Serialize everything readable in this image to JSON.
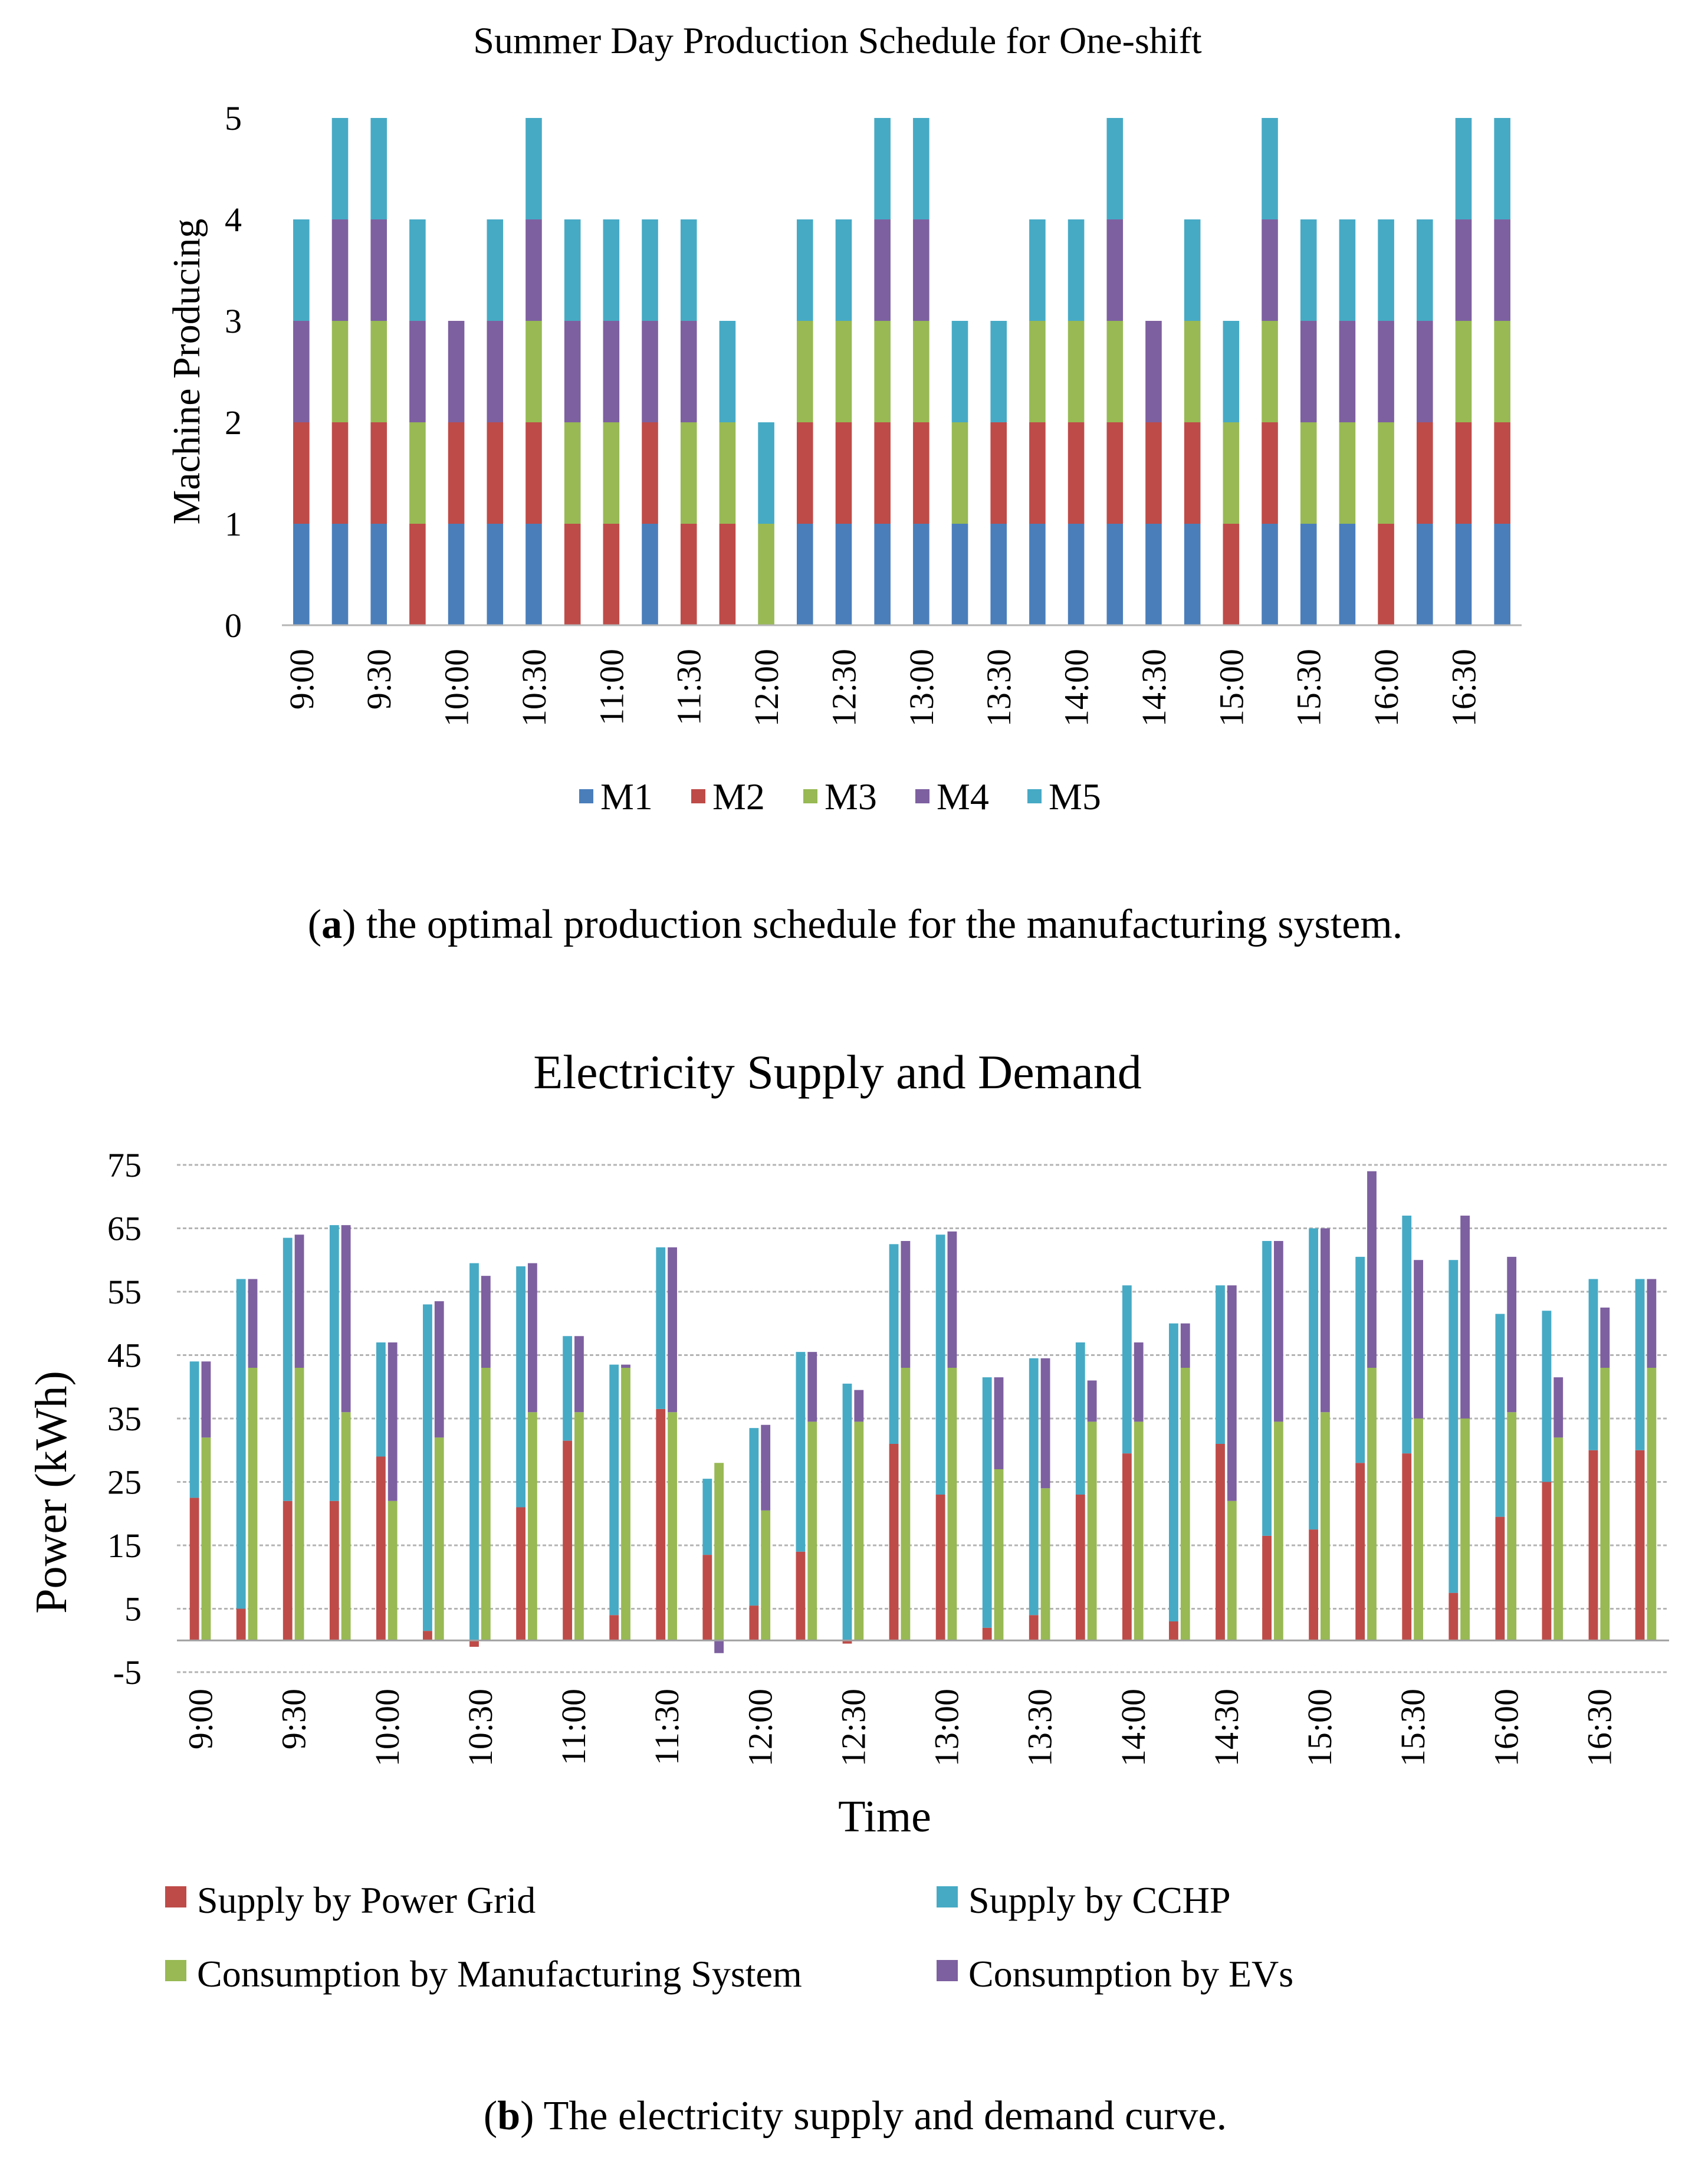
{
  "chart_data": [
    {
      "type": "bar",
      "stacked": true,
      "title": "Summer Day Production Schedule for One-shift",
      "ylabel": "Machine Producing",
      "xlabel": "",
      "ylim": [
        0,
        5
      ],
      "yticks": [
        0,
        1,
        2,
        3,
        4,
        5
      ],
      "grid": false,
      "legend_position": "bottom",
      "tick_labels": [
        "9:00",
        "9:30",
        "10:00",
        "10:30",
        "11:00",
        "11:30",
        "12:00",
        "12:30",
        "13:00",
        "13:30",
        "14:00",
        "14:30",
        "15:00",
        "15:30",
        "16:00",
        "16:30"
      ],
      "categories": [
        "9:00",
        "9:15",
        "9:30",
        "9:45",
        "10:00",
        "10:15",
        "10:30",
        "10:45",
        "11:00",
        "11:15",
        "11:30",
        "11:45",
        "12:00",
        "12:15",
        "12:30",
        "12:45",
        "13:00",
        "13:15",
        "13:30",
        "13:45",
        "14:00",
        "14:15",
        "14:30",
        "14:45",
        "15:00",
        "15:15",
        "15:30",
        "15:45",
        "16:00",
        "16:15",
        "16:30",
        "16:45"
      ],
      "series": [
        {
          "name": "M1",
          "color": "#4a7ebb",
          "values": [
            1,
            1,
            1,
            0,
            1,
            1,
            1,
            0,
            0,
            1,
            0,
            0,
            0,
            1,
            1,
            1,
            1,
            1,
            1,
            1,
            1,
            1,
            1,
            1,
            0,
            1,
            1,
            1,
            0,
            1,
            1,
            1
          ]
        },
        {
          "name": "M2",
          "color": "#be4b48",
          "values": [
            1,
            1,
            1,
            1,
            1,
            1,
            1,
            1,
            1,
            1,
            1,
            1,
            0,
            1,
            1,
            1,
            1,
            0,
            1,
            1,
            1,
            1,
            1,
            1,
            1,
            1,
            0,
            0,
            1,
            1,
            1,
            1
          ]
        },
        {
          "name": "M3",
          "color": "#98b954",
          "values": [
            0,
            1,
            1,
            1,
            0,
            0,
            1,
            1,
            1,
            0,
            1,
            1,
            1,
            1,
            1,
            1,
            1,
            1,
            0,
            1,
            1,
            1,
            0,
            1,
            1,
            1,
            1,
            1,
            1,
            0,
            1,
            1
          ]
        },
        {
          "name": "M4",
          "color": "#7d60a0",
          "values": [
            1,
            1,
            1,
            1,
            1,
            1,
            1,
            1,
            1,
            1,
            1,
            0,
            0,
            0,
            0,
            1,
            1,
            0,
            0,
            0,
            0,
            1,
            1,
            0,
            0,
            1,
            1,
            1,
            1,
            1,
            1,
            1
          ]
        },
        {
          "name": "M5",
          "color": "#46aac5",
          "values": [
            1,
            1,
            1,
            1,
            0,
            1,
            1,
            1,
            1,
            1,
            1,
            1,
            1,
            1,
            1,
            1,
            1,
            1,
            1,
            1,
            1,
            1,
            0,
            1,
            1,
            1,
            1,
            1,
            1,
            1,
            1,
            1
          ]
        }
      ]
    },
    {
      "type": "bar",
      "stacked": true,
      "title": "Electricity Supply and Demand",
      "xlabel": "Time",
      "ylabel": "Power  (kWh)",
      "ylim": [
        -5,
        75
      ],
      "yticks": [
        -5,
        5,
        15,
        25,
        35,
        45,
        55,
        65,
        75
      ],
      "grid": true,
      "legend_position": "bottom",
      "tick_labels": [
        "9:00",
        "9:30",
        "10:00",
        "10:30",
        "11:00",
        "11:30",
        "12:00",
        "12:30",
        "13:00",
        "13:30",
        "14:00",
        "14:30",
        "15:00",
        "15:30",
        "16:00",
        "16:30"
      ],
      "categories": [
        "9:00",
        "9:15",
        "9:30",
        "9:45",
        "10:00",
        "10:15",
        "10:30",
        "10:45",
        "11:00",
        "11:15",
        "11:30",
        "11:45",
        "12:00",
        "12:15",
        "12:30",
        "12:45",
        "13:00",
        "13:15",
        "13:30",
        "13:45",
        "14:00",
        "14:15",
        "14:30",
        "14:45",
        "15:00",
        "15:15",
        "15:30",
        "15:45",
        "16:00",
        "16:15",
        "16:30",
        "16:45"
      ],
      "supply_series": [
        {
          "name": "Supply by Power Grid",
          "color": "#be4b48",
          "values": [
            22.5,
            5,
            22,
            22,
            29,
            1.5,
            -1,
            21,
            31.5,
            4,
            36.5,
            13.5,
            5.5,
            14,
            -0.5,
            31,
            23,
            2,
            4,
            23,
            29.5,
            3,
            31,
            16.5,
            17.5,
            28,
            29.5,
            7.5,
            19.5,
            25,
            30,
            30
          ]
        },
        {
          "name": "Supply by CCHP",
          "color": "#46aac5",
          "values": [
            21.5,
            52,
            41.5,
            43.5,
            18,
            51.5,
            59.5,
            38,
            16.5,
            39.5,
            25.5,
            12,
            28,
            31.5,
            40.5,
            31.5,
            41,
            39.5,
            40.5,
            24,
            26.5,
            47,
            25,
            46.5,
            47.5,
            32.5,
            37.5,
            52.5,
            32,
            27,
            27,
            27
          ]
        }
      ],
      "demand_series": [
        {
          "name": "Consumption by Manufacturing System",
          "color": "#98b954",
          "values": [
            32,
            43,
            43,
            36,
            22,
            32,
            43,
            36,
            36,
            43,
            36,
            28,
            20.5,
            34.5,
            34.5,
            43,
            43,
            27,
            24,
            34.5,
            34.5,
            43,
            22,
            34.5,
            36,
            43,
            35,
            35,
            36,
            32,
            43,
            43
          ]
        },
        {
          "name": "Consumption by EVs",
          "color": "#7d60a0",
          "values": [
            12,
            14,
            21,
            29.5,
            25,
            21.5,
            14.5,
            23.5,
            12,
            0.5,
            26,
            -2,
            13.5,
            11,
            5,
            20,
            21.5,
            14.5,
            20.5,
            6.5,
            12.5,
            7,
            34,
            28.5,
            29,
            31,
            25,
            32,
            24.5,
            9.5,
            9.5,
            14
          ]
        }
      ],
      "legend_order": [
        "Supply by Power Grid",
        "Supply by CCHP",
        "Consumption by Manufacturing System",
        "Consumption by EVs"
      ]
    }
  ],
  "captions": {
    "a_label": "a",
    "a_text": ") the optimal production schedule for the manufacturing system.",
    "b_label": "b",
    "b_text": ") The electricity supply and demand curve."
  }
}
